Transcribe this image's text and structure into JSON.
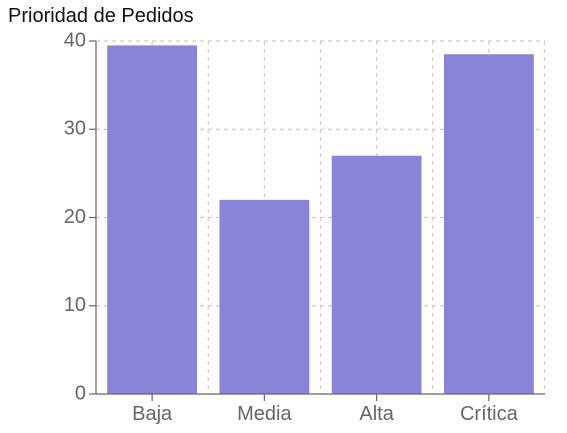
{
  "chart_data": {
    "type": "bar",
    "title": "Prioridad de Pedidos",
    "categories": [
      "Baja",
      "Media",
      "Alta",
      "Crítica"
    ],
    "values": [
      39.5,
      22,
      27,
      38.5
    ],
    "xlabel": "",
    "ylabel": "",
    "ylim": [
      0,
      40
    ],
    "yticks": [
      0,
      10,
      20,
      30,
      40
    ],
    "grid": true,
    "bar_color": "#8884d8"
  }
}
